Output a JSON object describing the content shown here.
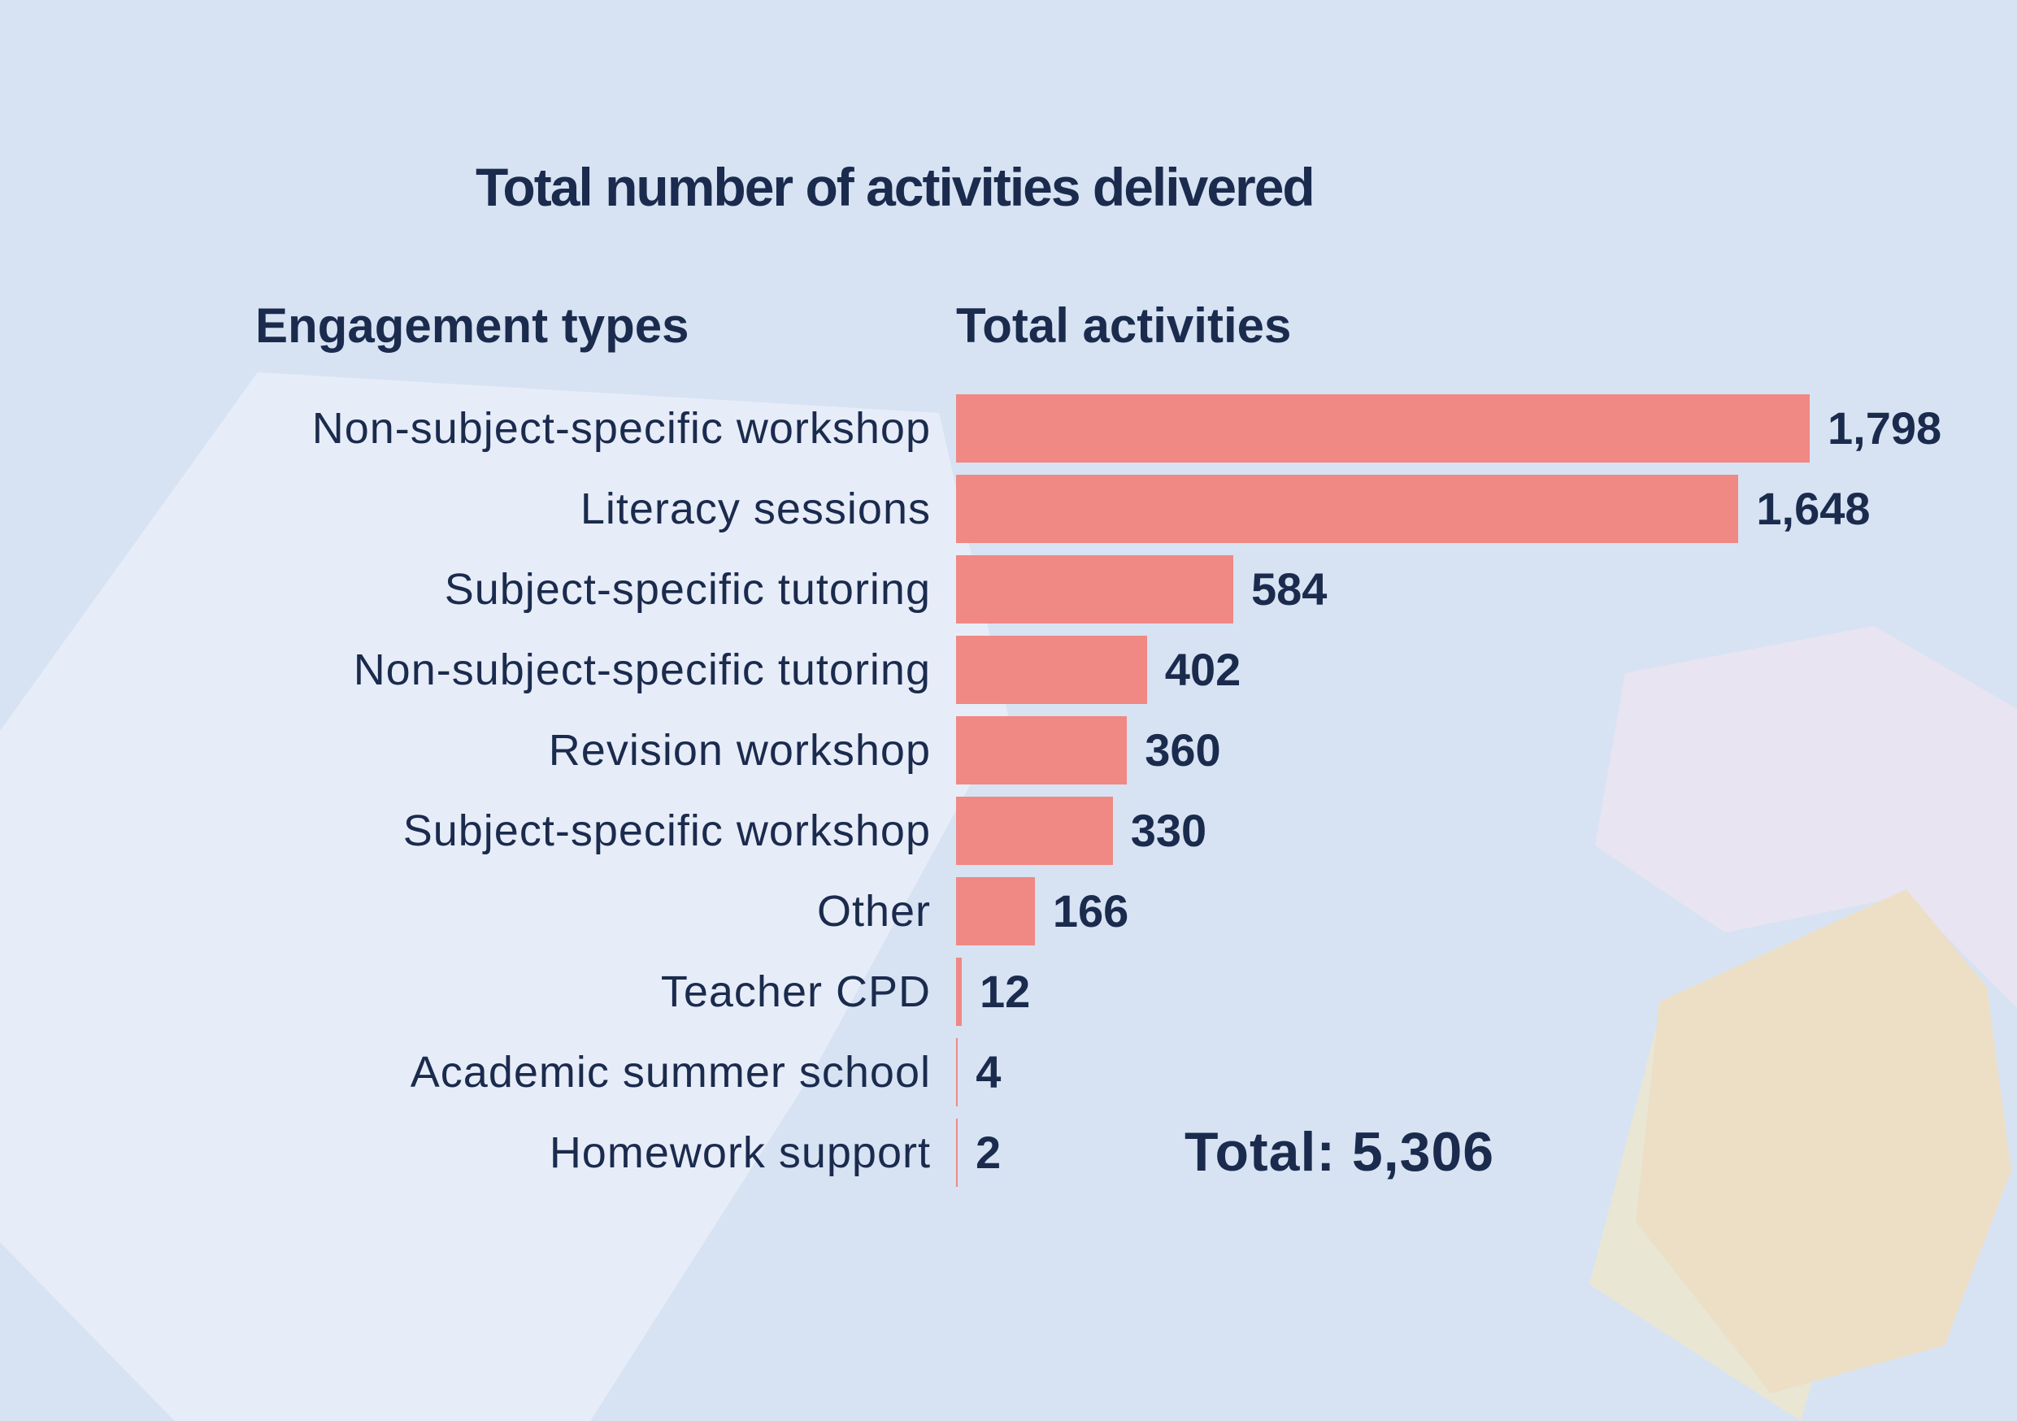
{
  "chart": {
    "title": "Total number of activities delivered",
    "column_headers": {
      "engagement_types": "Engagement types",
      "total_activities": "Total activities"
    },
    "total_label": "Total: 5,306"
  },
  "chart_data": {
    "type": "bar",
    "orientation": "horizontal",
    "title": "Total number of activities delivered",
    "categories": [
      "Non-subject-specific workshop",
      "Literacy sessions",
      "Subject-specific tutoring",
      "Non-subject-specific tutoring",
      "Revision workshop",
      "Subject-specific workshop",
      "Other",
      "Teacher CPD",
      "Academic summer school",
      "Homework support"
    ],
    "values": [
      1798,
      1648,
      584,
      402,
      360,
      330,
      166,
      12,
      4,
      2
    ],
    "value_labels": [
      "1,798",
      "1,648",
      "584",
      "402",
      "360",
      "330",
      "166",
      "12",
      "4",
      "2"
    ],
    "max_value": 1798,
    "total": 5306,
    "total_text": "Total: 5,306",
    "xlabel": "Total activities",
    "ylabel": "Engagement types",
    "legend": "none",
    "gridlines": false,
    "bar_color": "#f08884",
    "text_color": "#1b2b4e"
  },
  "colors": {
    "background": "#d7e3f3",
    "panel_light": "#e7edf8",
    "bar": "#f08884",
    "navy": "#1b2b4e",
    "shape_pink": "#e9e4f1",
    "shape_tan": "#ecdfc6",
    "shape_tan_light": "#e9e6d4"
  }
}
